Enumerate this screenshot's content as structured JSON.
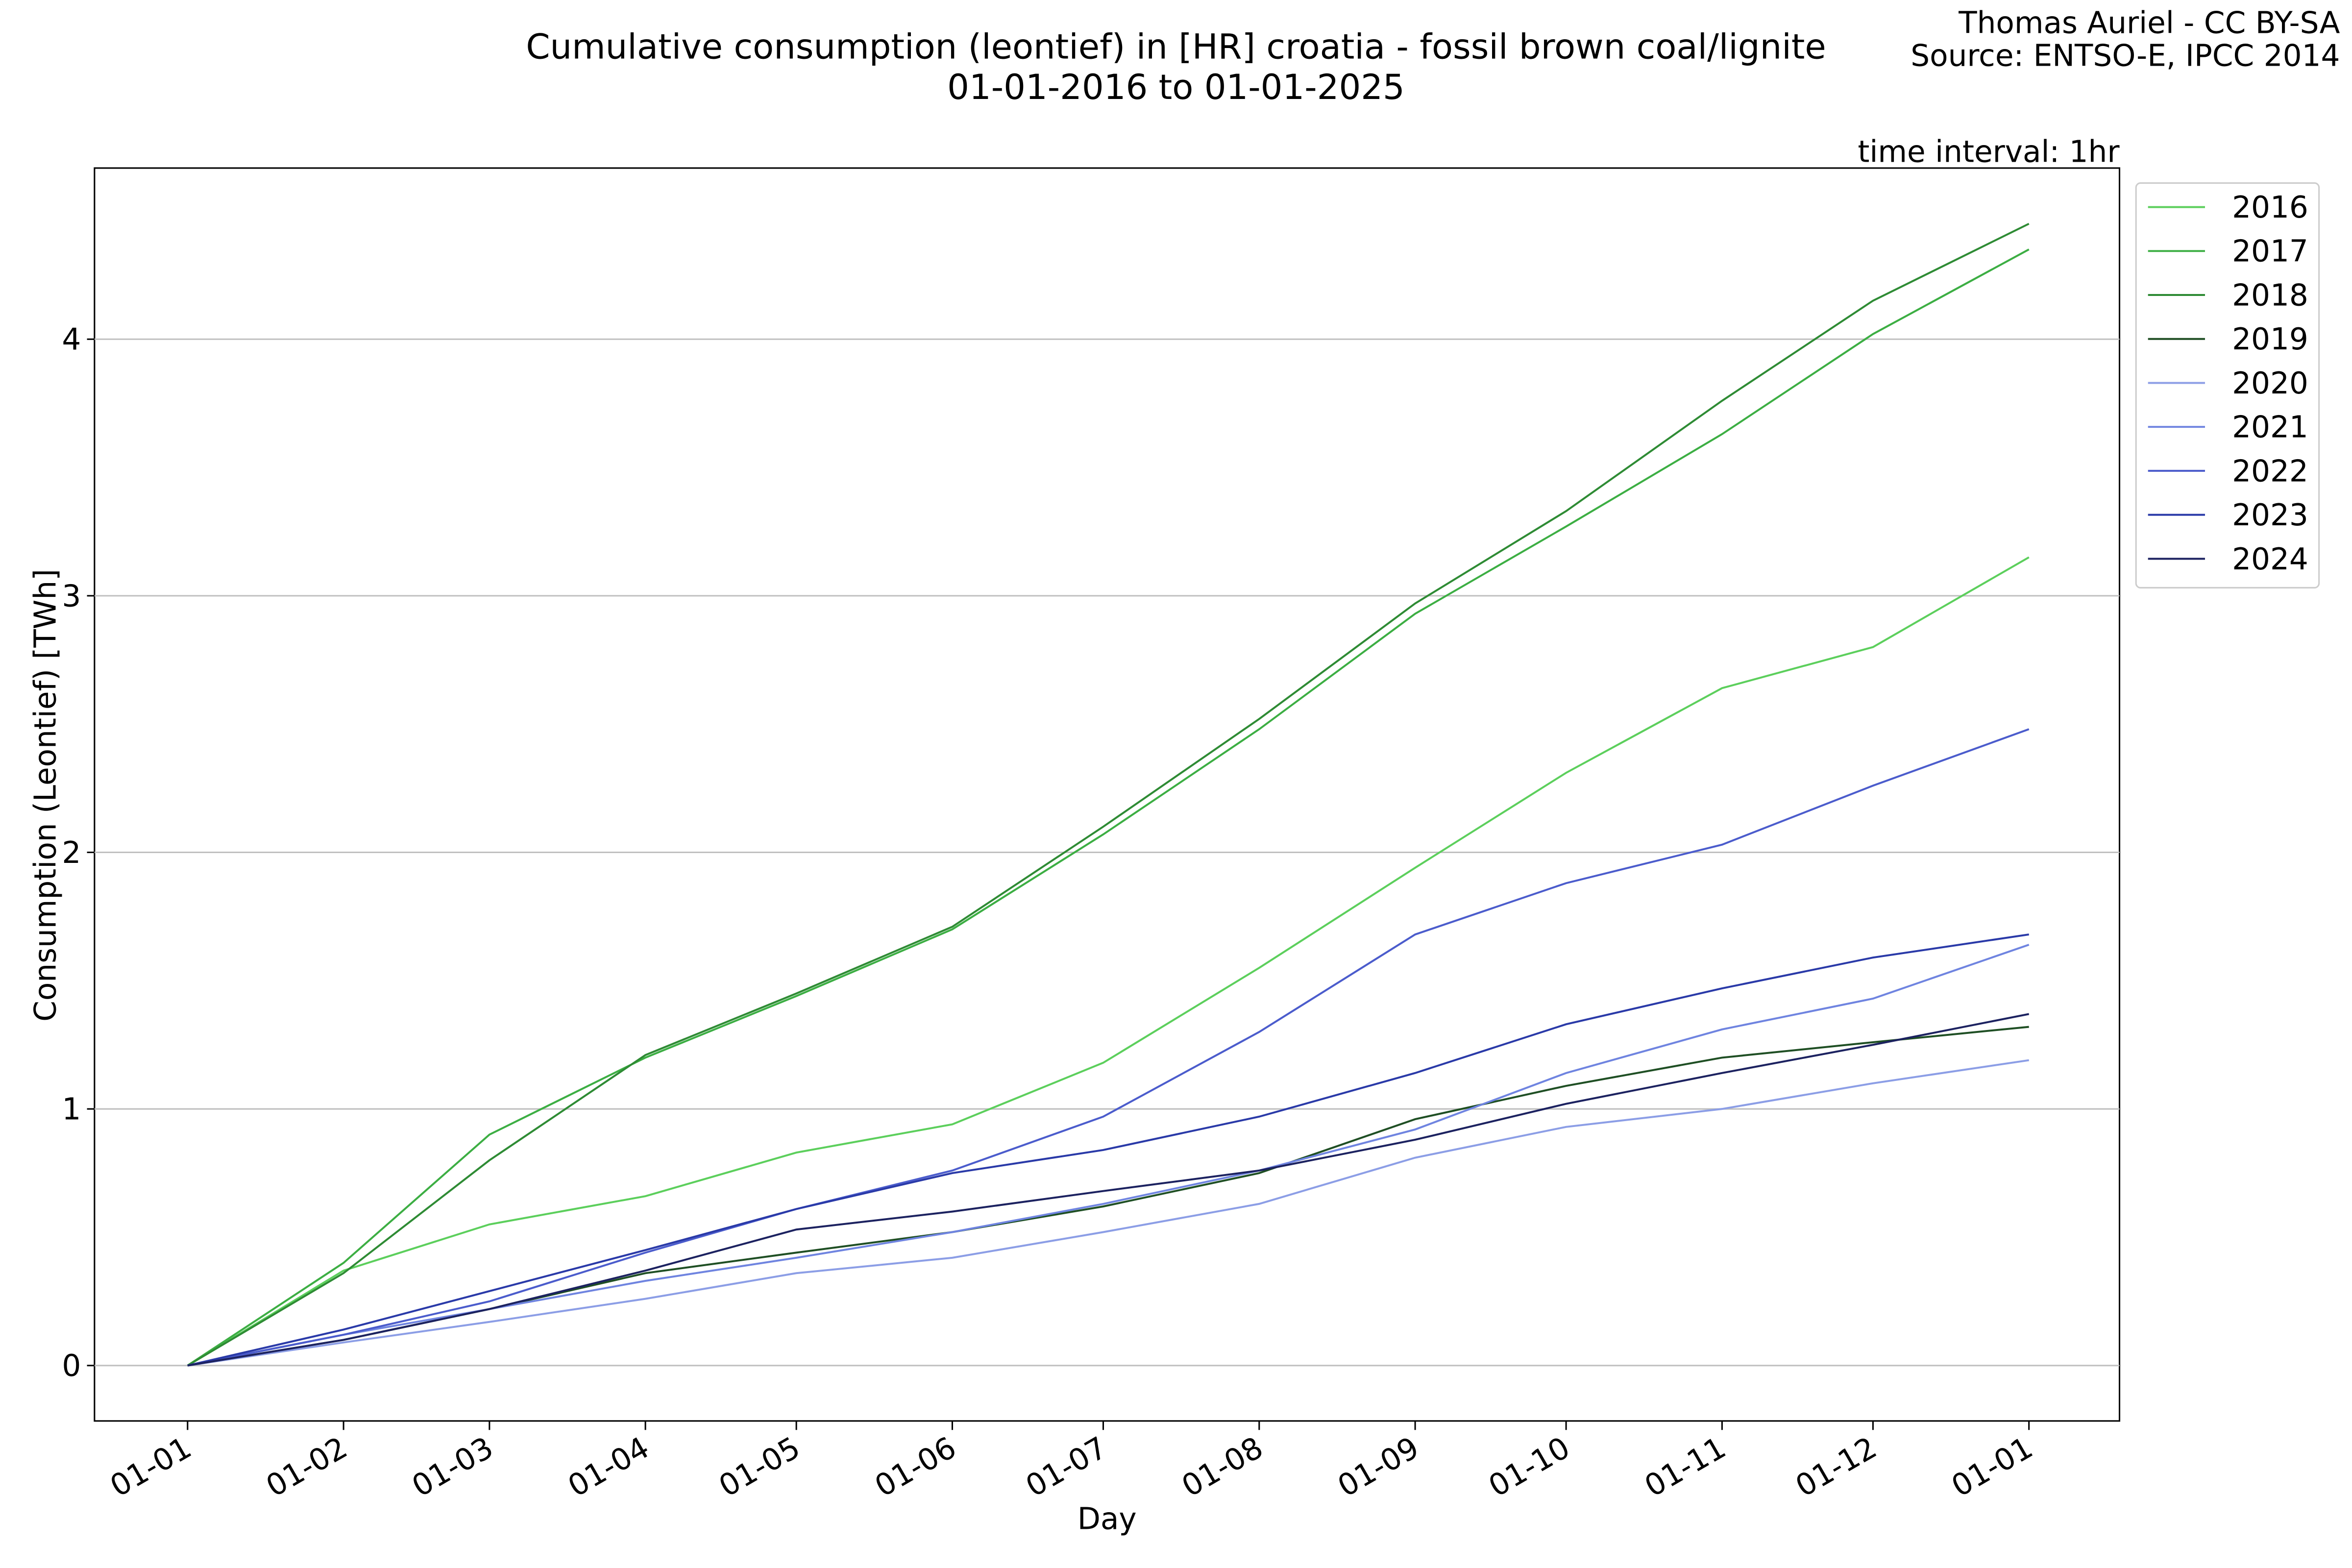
{
  "chart_data": {
    "type": "line",
    "title": "Cumulative consumption (leontief) in [HR] croatia - fossil brown coal/lignite",
    "subtitle": "01-01-2016 to 01-01-2025",
    "credit": "Thomas Auriel - CC BY-SA",
    "source": "Source: ENTSO-E, IPCC 2014",
    "annotation": "time interval: 1hr",
    "x_label": "Day",
    "y_label": "Consumption (Leontief) [TWh]",
    "x": [
      0,
      31,
      60,
      91,
      121,
      152,
      182,
      213,
      244,
      274,
      305,
      335,
      366
    ],
    "xlim": [
      -18.5,
      384
    ],
    "xticks": [
      {
        "value": 0,
        "label": "01-01"
      },
      {
        "value": 31,
        "label": "01-02"
      },
      {
        "value": 60,
        "label": "01-03"
      },
      {
        "value": 91,
        "label": "01-04"
      },
      {
        "value": 121,
        "label": "01-05"
      },
      {
        "value": 152,
        "label": "01-06"
      },
      {
        "value": 182,
        "label": "01-07"
      },
      {
        "value": 213,
        "label": "01-08"
      },
      {
        "value": 244,
        "label": "01-09"
      },
      {
        "value": 274,
        "label": "01-10"
      },
      {
        "value": 305,
        "label": "01-11"
      },
      {
        "value": 335,
        "label": "01-12"
      },
      {
        "value": 366,
        "label": "01-01"
      }
    ],
    "ylim": [
      -0.216,
      4.667
    ],
    "yticks": [
      0,
      1,
      2,
      3,
      4
    ],
    "grid": true,
    "legend": "outside-upper-right",
    "series": [
      {
        "name": "2016",
        "color": "#5ccf5c",
        "values": [
          0,
          0.37,
          0.55,
          0.66,
          0.83,
          0.94,
          1.18,
          1.55,
          1.94,
          2.31,
          2.64,
          2.8,
          3.15
        ]
      },
      {
        "name": "2017",
        "color": "#3cae43",
        "values": [
          0,
          0.4,
          0.9,
          1.2,
          1.44,
          1.7,
          2.07,
          2.48,
          2.93,
          3.27,
          3.63,
          4.02,
          4.35
        ]
      },
      {
        "name": "2018",
        "color": "#2e8b34",
        "values": [
          0,
          0.36,
          0.8,
          1.21,
          1.45,
          1.71,
          2.1,
          2.52,
          2.97,
          3.33,
          3.76,
          4.15,
          4.45
        ]
      },
      {
        "name": "2019",
        "color": "#1f4f24",
        "values": [
          0,
          0.1,
          0.22,
          0.36,
          0.44,
          0.52,
          0.62,
          0.75,
          0.96,
          1.09,
          1.2,
          1.26,
          1.32
        ]
      },
      {
        "name": "2020",
        "color": "#8c9ee6",
        "values": [
          0,
          0.09,
          0.17,
          0.26,
          0.36,
          0.42,
          0.52,
          0.63,
          0.81,
          0.93,
          1.0,
          1.1,
          1.19
        ]
      },
      {
        "name": "2021",
        "color": "#6f84e0",
        "values": [
          0,
          0.12,
          0.22,
          0.33,
          0.42,
          0.52,
          0.63,
          0.76,
          0.92,
          1.14,
          1.31,
          1.43,
          1.64
        ]
      },
      {
        "name": "2022",
        "color": "#4b5ccc",
        "values": [
          0,
          0.12,
          0.25,
          0.44,
          0.61,
          0.76,
          0.97,
          1.3,
          1.68,
          1.88,
          2.03,
          2.26,
          2.48
        ]
      },
      {
        "name": "2023",
        "color": "#2a3aa8",
        "values": [
          0,
          0.14,
          0.29,
          0.45,
          0.61,
          0.75,
          0.84,
          0.97,
          1.14,
          1.33,
          1.47,
          1.59,
          1.68
        ]
      },
      {
        "name": "2024",
        "color": "#1c2260",
        "values": [
          0,
          0.1,
          0.22,
          0.37,
          0.53,
          0.6,
          0.68,
          0.76,
          0.88,
          1.02,
          1.14,
          1.25,
          1.37
        ]
      }
    ]
  }
}
